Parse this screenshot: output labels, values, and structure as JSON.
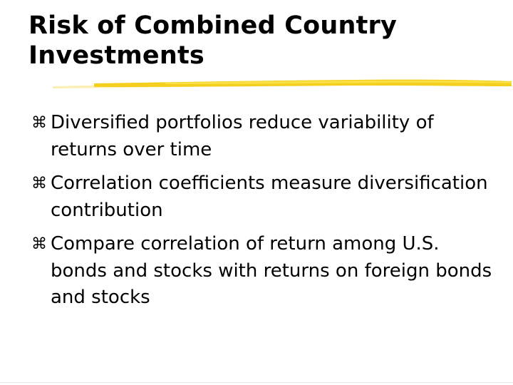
{
  "slide": {
    "title_line1": "Risk of Combined Country",
    "title_line2": "Investments",
    "accent_color": "#f5cf1e",
    "bullet_icon": "command-key-icon",
    "bullet_glyph": "⌘",
    "bullets": [
      "Diversified portfolios reduce variability of returns over time",
      "Correlation coefficients measure diversification contribution",
      "Compare correlation of return among U.S. bonds and stocks with returns on foreign bonds and stocks"
    ]
  }
}
